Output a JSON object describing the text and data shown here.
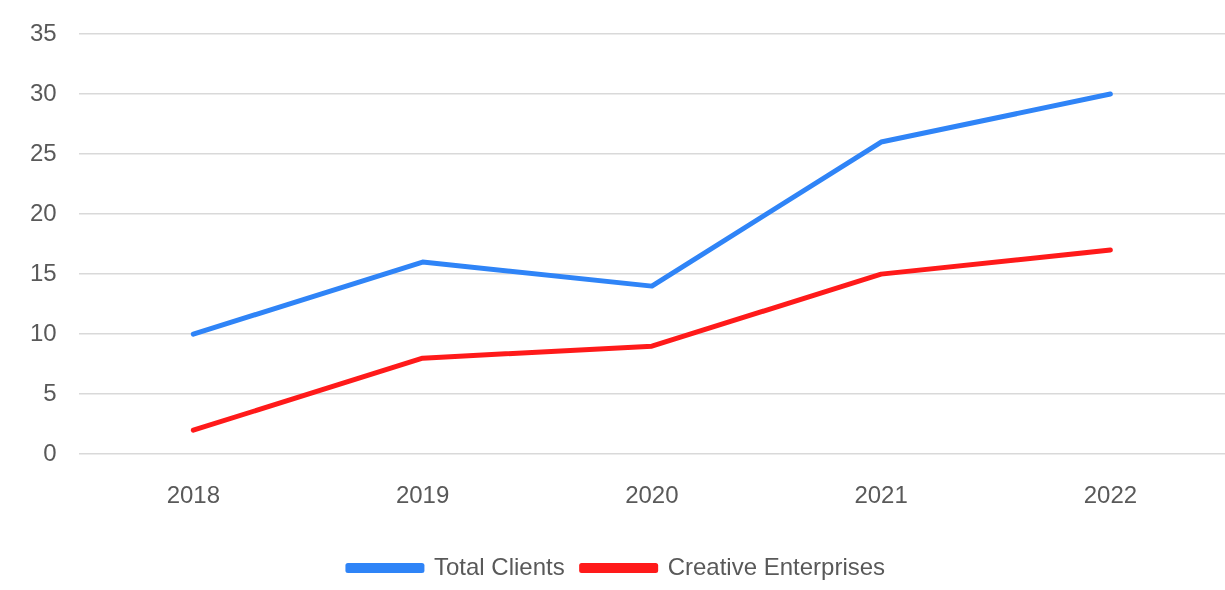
{
  "chart_data": {
    "type": "line",
    "categories": [
      "2018",
      "2019",
      "2020",
      "2021",
      "2022"
    ],
    "series": [
      {
        "name": "Total Clients",
        "color": "#2f84f7",
        "values": [
          10,
          16,
          14,
          26,
          30
        ]
      },
      {
        "name": "Creative Enterprises",
        "color": "#ff1a1a",
        "values": [
          2,
          8,
          9,
          15,
          17
        ]
      }
    ],
    "ylim": [
      0,
      35
    ],
    "yticks": [
      0,
      5,
      10,
      15,
      20,
      25,
      30,
      35
    ],
    "grid": "y",
    "legend": "bottom",
    "marker": "none",
    "line_style": "solid"
  }
}
